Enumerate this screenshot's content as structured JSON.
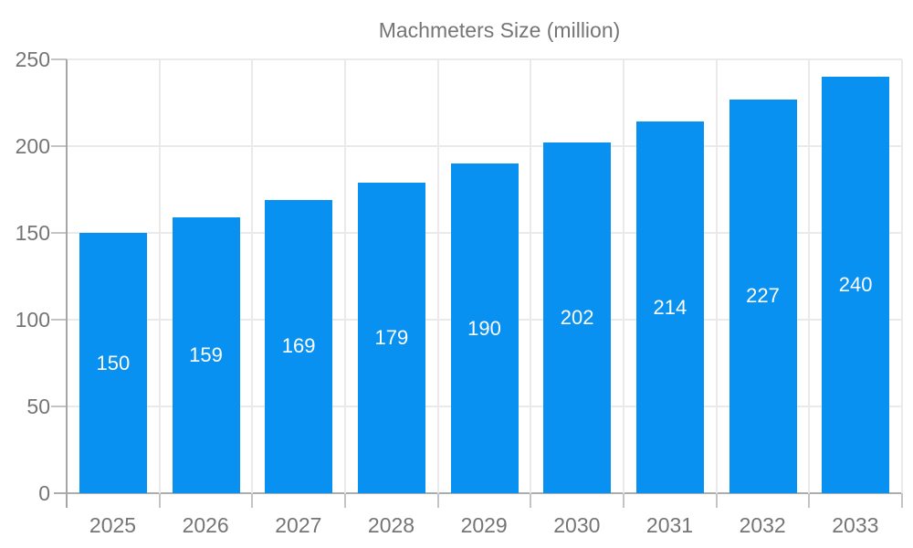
{
  "chart_data": {
    "type": "bar",
    "title": "Machmeters Size (million)",
    "legend_label": "Machmeters Size (million)",
    "legend_position": "top-center",
    "categories": [
      "2025",
      "2026",
      "2027",
      "2028",
      "2029",
      "2030",
      "2031",
      "2032",
      "2033"
    ],
    "series": [
      {
        "name": "Machmeters Size (million)",
        "values": [
          150,
          159,
          169,
          179,
          190,
          202,
          214,
          227,
          240
        ]
      }
    ],
    "value_labels": [
      "150",
      "159",
      "169",
      "179",
      "190",
      "202",
      "214",
      "227",
      "240"
    ],
    "value_label_position": "center-of-bar",
    "xlabel": "",
    "ylabel": "",
    "ylim": [
      0,
      250
    ],
    "yticks": [
      0,
      50,
      100,
      150,
      200,
      250
    ],
    "grid": "on",
    "colors": {
      "bar": "#0991f2",
      "bar_label_text": "#ffffff",
      "axis_text": "#757575",
      "axis_line": "#a6a6a6",
      "tick": "#c4c4c4",
      "gridline": "#eaeaea",
      "background": "#ffffff"
    }
  }
}
